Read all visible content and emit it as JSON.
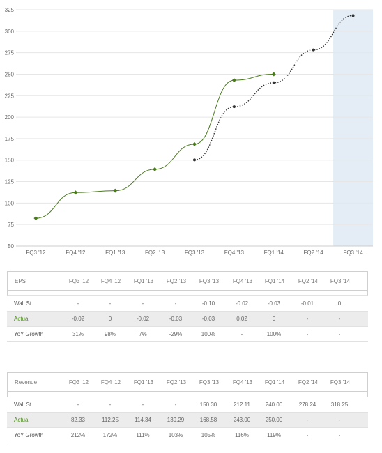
{
  "chart_data": {
    "type": "line",
    "categories": [
      "FQ3 '12",
      "FQ4 '12",
      "FQ1 '13",
      "FQ2 '13",
      "FQ3 '13",
      "FQ4 '13",
      "FQ1 '14",
      "FQ2 '14",
      "FQ3 '14"
    ],
    "y_ticks": [
      50,
      75,
      100,
      125,
      150,
      175,
      200,
      225,
      250,
      275,
      300,
      325
    ],
    "ylim": [
      50,
      325
    ],
    "grid": true,
    "highlight_category": "FQ3 '14",
    "series": [
      {
        "style": "solid",
        "color": "#4a7a1c",
        "values": [
          82.33,
          112.25,
          114.34,
          139.29,
          168.58,
          243.0,
          250.0,
          null,
          null
        ]
      },
      {
        "style": "dotted",
        "color": "#333333",
        "values": [
          null,
          null,
          null,
          null,
          150.3,
          212.11,
          240.0,
          278.24,
          318.25
        ]
      }
    ]
  },
  "colors": {
    "actual": "#4a7a1c",
    "estimate": "#333333",
    "highlight": "#e4edf5",
    "grid": "#e6e6e6"
  },
  "eps_table": {
    "title": "EPS",
    "columns": [
      "FQ3 '12",
      "FQ4 '12",
      "FQ1 '13",
      "FQ2 '13",
      "FQ3 '13",
      "FQ4 '13",
      "FQ1 '14",
      "FQ2 '14",
      "FQ3 '14"
    ],
    "rows": [
      {
        "label": "Wall St.",
        "values": [
          "-",
          "-",
          "-",
          "-",
          "-0.10",
          "-0.02",
          "-0.03",
          "-0.01",
          "0"
        ]
      },
      {
        "label": "Actual",
        "values": [
          "-0.02",
          "0",
          "-0.02",
          "-0.03",
          "-0.03",
          "0.02",
          "0",
          "-",
          "-"
        ]
      },
      {
        "label": "YoY Growth",
        "values": [
          "31%",
          "98%",
          "7%",
          "-29%",
          "100%",
          "-",
          "100%",
          "-",
          "-"
        ]
      }
    ]
  },
  "revenue_table": {
    "title": "Revenue",
    "columns": [
      "FQ3 '12",
      "FQ4 '12",
      "FQ1 '13",
      "FQ2 '13",
      "FQ3 '13",
      "FQ4 '13",
      "FQ1 '14",
      "FQ2 '14",
      "FQ3 '14"
    ],
    "rows": [
      {
        "label": "Wall St.",
        "values": [
          "-",
          "-",
          "-",
          "-",
          "150.30",
          "212.11",
          "240.00",
          "278.24",
          "318.25"
        ]
      },
      {
        "label": "Actual",
        "values": [
          "82.33",
          "112.25",
          "114.34",
          "139.29",
          "168.58",
          "243.00",
          "250.00",
          "-",
          "-"
        ]
      },
      {
        "label": "YoY Growth",
        "values": [
          "212%",
          "172%",
          "111%",
          "103%",
          "105%",
          "116%",
          "119%",
          "-",
          "-"
        ]
      }
    ]
  }
}
